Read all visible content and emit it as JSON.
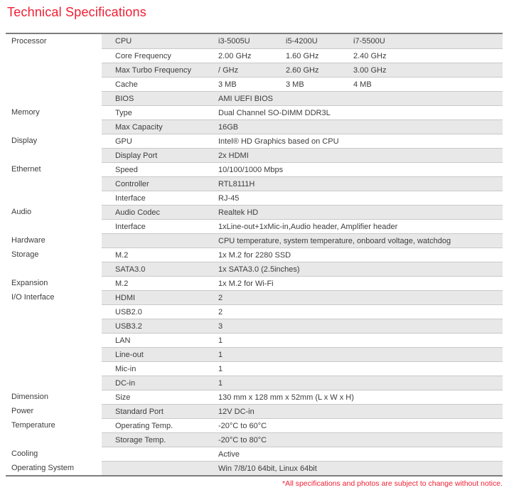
{
  "page": {
    "title": "Technical Specifications",
    "footnote": "*All specifications and photos are subject to change without notice.",
    "colors": {
      "accent": "#f01e32",
      "row_shade": "#e8e8e8",
      "separator": "#c9c9c9",
      "frame": "#7d7d7d",
      "text": "#3d3d3d"
    }
  },
  "table": {
    "rows": [
      {
        "category": "Processor",
        "label": "CPU",
        "values": [
          "i3-5005U",
          "i5-4200U",
          "i7-5500U"
        ],
        "shade": true
      },
      {
        "category": "",
        "label": "Core Frequency",
        "values": [
          "2.00 GHz",
          "1.60 GHz",
          "2.40 GHz"
        ],
        "shade": false
      },
      {
        "category": "",
        "label": "Max Turbo Frequency",
        "values": [
          "/ GHz",
          "2.60 GHz",
          "3.00 GHz"
        ],
        "shade": true
      },
      {
        "category": "",
        "label": "Cache",
        "values": [
          "3 MB",
          "3 MB",
          "4 MB"
        ],
        "shade": false
      },
      {
        "category": "",
        "label": "BIOS",
        "value": "AMI UEFI BIOS",
        "shade": true
      },
      {
        "category": "Memory",
        "label": "Type",
        "value": "Dual Channel SO-DIMM DDR3L",
        "shade": false
      },
      {
        "category": "",
        "label": "Max Capacity",
        "value": "16GB",
        "shade": true
      },
      {
        "category": "Display",
        "label": "GPU",
        "value": "Intel® HD Graphics based on CPU",
        "shade": false
      },
      {
        "category": "",
        "label": "Display Port",
        "value": "2x HDMI",
        "shade": true
      },
      {
        "category": "Ethernet",
        "label": "Speed",
        "value": "10/100/1000 Mbps",
        "shade": false
      },
      {
        "category": "",
        "label": "Controller",
        "value": "RTL8111H",
        "shade": true
      },
      {
        "category": "",
        "label": "Interface",
        "value": "RJ-45",
        "shade": false
      },
      {
        "category": "Audio",
        "label": "Audio Codec",
        "value": "Realtek HD",
        "shade": true
      },
      {
        "category": "",
        "label": "Interface",
        "value": "1xLine-out+1xMic-in,Audio header, Amplifier header",
        "shade": false
      },
      {
        "category": "Hardware",
        "label": "",
        "value": "CPU temperature, system temperature, onboard voltage, watchdog",
        "shade": true
      },
      {
        "category": "Storage",
        "label": "M.2",
        "value": "1x M.2 for 2280 SSD",
        "shade": false
      },
      {
        "category": "",
        "label": "SATA3.0",
        "value": "1x SATA3.0 (2.5inches)",
        "shade": true
      },
      {
        "category": "Expansion",
        "label": "M.2",
        "value": "1x M.2 for Wi-Fi",
        "shade": false
      },
      {
        "category": "I/O Interface",
        "label": "HDMI",
        "value": "2",
        "shade": true
      },
      {
        "category": "",
        "label": "USB2.0",
        "value": "2",
        "shade": false
      },
      {
        "category": "",
        "label": "USB3.2",
        "value": "3",
        "shade": true
      },
      {
        "category": "",
        "label": "LAN",
        "value": "1",
        "shade": false
      },
      {
        "category": "",
        "label": "Line-out",
        "value": "1",
        "shade": true
      },
      {
        "category": "",
        "label": "Mic-in",
        "value": "1",
        "shade": false
      },
      {
        "category": "",
        "label": "DC-in",
        "value": "1",
        "shade": true
      },
      {
        "category": "Dimension",
        "label": "Size",
        "value": "130 mm x 128 mm x 52mm (L x W x H)",
        "shade": false
      },
      {
        "category": "Power",
        "label": "Standard Port",
        "value": "12V DC-in",
        "shade": true
      },
      {
        "category": "Temperature",
        "label": "Operating Temp.",
        "value": "-20°C to 60°C",
        "shade": false
      },
      {
        "category": "",
        "label": "Storage Temp.",
        "value": "-20°C to 80°C",
        "shade": true
      },
      {
        "category": "Cooling",
        "label": "",
        "value": "Active",
        "shade": false
      },
      {
        "category": "Operating System",
        "label": "",
        "value": "Win 7/8/10 64bit, Linux 64bit",
        "shade": true
      }
    ]
  }
}
